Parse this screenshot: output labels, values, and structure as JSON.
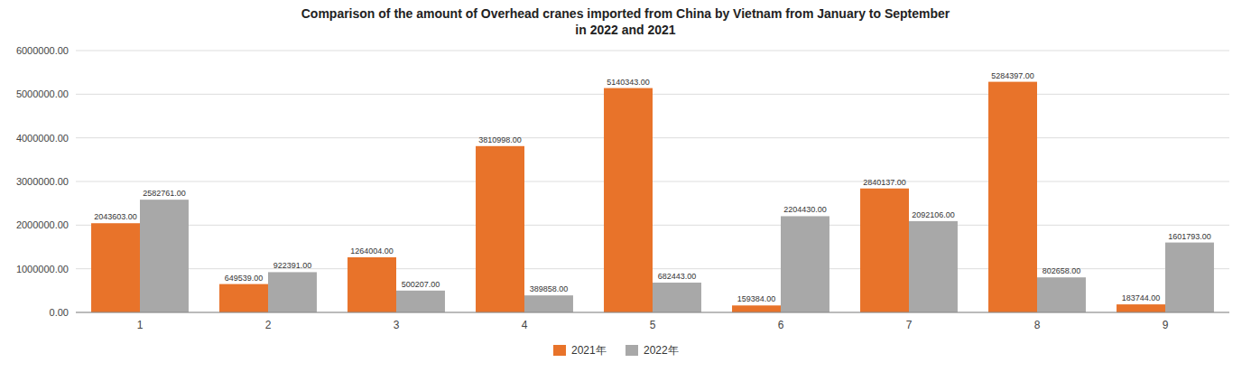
{
  "chart_data": {
    "type": "bar",
    "title": "Comparison of the amount of Overhead cranes imported from China by Vietnam from January to September\nin 2022 and 2021",
    "categories": [
      "1",
      "2",
      "3",
      "4",
      "5",
      "6",
      "7",
      "8",
      "9"
    ],
    "series": [
      {
        "name": "2021年",
        "color": "#E8732A",
        "values": [
          2043603,
          649539,
          1264004,
          3810998,
          5140343,
          159384,
          2840137,
          5284397,
          183744
        ],
        "value_labels": [
          "2043603.00",
          "649539.00",
          "1264004.00",
          "3810998.00",
          "5140343.00",
          "159384.00",
          "2840137.00",
          "5284397.00",
          "183744.00"
        ]
      },
      {
        "name": "2022年",
        "color": "#A8A8A8",
        "values": [
          2582761,
          922391,
          500207,
          389858,
          682443,
          2204430,
          2092106,
          802658,
          1601793
        ],
        "value_labels": [
          "2582761.00",
          "922391.00",
          "500207.00",
          "389858.00",
          "682443.00",
          "2204430.00",
          "2092106.00",
          "802658.00",
          "1601793.00"
        ]
      }
    ],
    "ylim": [
      0,
      6000000
    ],
    "yticks": [
      {
        "value": 0,
        "label": "0.00"
      },
      {
        "value": 1000000,
        "label": "1000000.00"
      },
      {
        "value": 2000000,
        "label": "2000000.00"
      },
      {
        "value": 3000000,
        "label": "3000000.00"
      },
      {
        "value": 4000000,
        "label": "4000000.00"
      },
      {
        "value": 5000000,
        "label": "5000000.00"
      },
      {
        "value": 6000000,
        "label": "6000000.00"
      }
    ],
    "grid": true,
    "data_labels": true,
    "legend": "bottom"
  }
}
